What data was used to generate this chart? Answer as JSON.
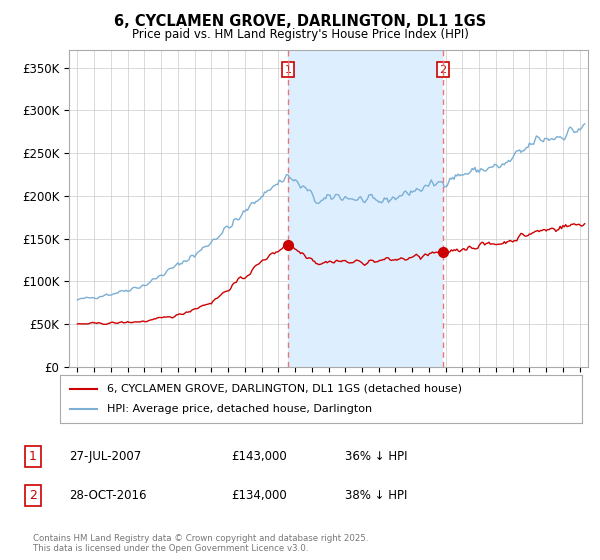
{
  "title": "6, CYCLAMEN GROVE, DARLINGTON, DL1 1GS",
  "subtitle": "Price paid vs. HM Land Registry's House Price Index (HPI)",
  "legend_line1": "6, CYCLAMEN GROVE, DARLINGTON, DL1 1GS (detached house)",
  "legend_line2": "HPI: Average price, detached house, Darlington",
  "sale1_label": "1",
  "sale1_date_str": "27-JUL-2007",
  "sale1_price": 143000,
  "sale1_hpi_text": "36% ↓ HPI",
  "sale1_date_num": 2007.58,
  "sale2_label": "2",
  "sale2_date_str": "28-OCT-2016",
  "sale2_price": 134000,
  "sale2_hpi_text": "38% ↓ HPI",
  "sale2_date_num": 2016.83,
  "ylim": [
    0,
    370000
  ],
  "xlim": [
    1994.5,
    2025.5
  ],
  "price_line_color": "#cc0000",
  "hpi_line_color": "#7bafd4",
  "vline_color": "#e87777",
  "shade_color": "#ddeeff",
  "background_color": "#ffffff",
  "copyright_text": "Contains HM Land Registry data © Crown copyright and database right 2025.\nThis data is licensed under the Open Government Licence v3.0.",
  "yticks": [
    0,
    50000,
    100000,
    150000,
    200000,
    250000,
    300000,
    350000
  ],
  "ytick_labels": [
    "£0",
    "£50K",
    "£100K",
    "£150K",
    "£200K",
    "£250K",
    "£300K",
    "£350K"
  ]
}
